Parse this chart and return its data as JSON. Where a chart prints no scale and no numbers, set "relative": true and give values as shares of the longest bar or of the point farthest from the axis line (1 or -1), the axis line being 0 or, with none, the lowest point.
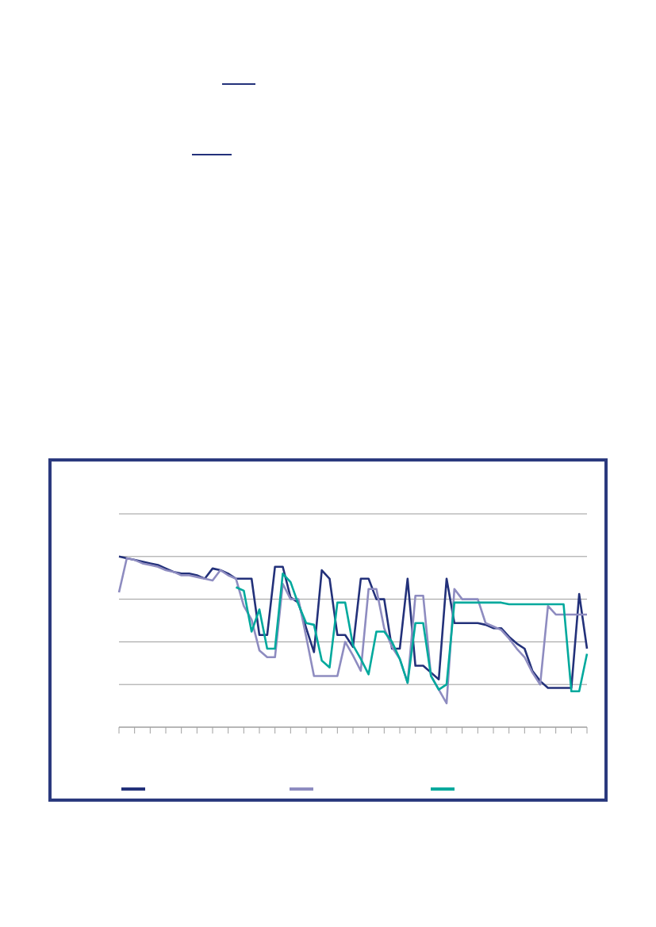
{
  "chart_data": {
    "type": "line",
    "relative": true,
    "categories": [
      null,
      null,
      null,
      null,
      null,
      null,
      null,
      null,
      null,
      null,
      null,
      null,
      null,
      null,
      null,
      null,
      null,
      null,
      null,
      null,
      null,
      null,
      null,
      null,
      null,
      null,
      null,
      null,
      null,
      null,
      null,
      null,
      null,
      null,
      null,
      null,
      null,
      null,
      null,
      null,
      null,
      null,
      null,
      null,
      null,
      null,
      null,
      null,
      null,
      null,
      null,
      null,
      null,
      null,
      null,
      null,
      null,
      null,
      null,
      null,
      null
    ],
    "series": [
      {
        "color": "#23317a",
        "values": [
          1.0,
          0.99,
          0.98,
          0.97,
          0.96,
          0.95,
          0.93,
          0.91,
          0.9,
          0.9,
          0.89,
          0.87,
          0.93,
          0.92,
          0.9,
          0.87,
          0.87,
          0.87,
          0.54,
          0.54,
          0.94,
          0.94,
          0.76,
          0.73,
          0.58,
          0.44,
          0.92,
          0.87,
          0.54,
          0.54,
          0.47,
          0.87,
          0.87,
          0.75,
          0.75,
          0.46,
          0.46,
          0.87,
          0.36,
          0.36,
          0.32,
          0.28,
          0.87,
          0.61,
          0.61,
          0.61,
          0.61,
          0.6,
          0.58,
          0.58,
          0.53,
          0.49,
          0.46,
          0.33,
          0.27,
          0.23,
          0.23,
          0.23,
          0.23,
          0.78,
          0.46
        ]
      },
      {
        "color": "#8e8cc0",
        "values": [
          0.79,
          0.99,
          0.98,
          0.96,
          0.95,
          0.94,
          0.92,
          0.91,
          0.89,
          0.89,
          0.88,
          0.87,
          0.86,
          0.92,
          0.89,
          0.87,
          0.71,
          0.63,
          0.45,
          0.41,
          0.41,
          0.84,
          0.75,
          0.75,
          0.53,
          0.3,
          0.3,
          0.3,
          0.3,
          0.5,
          0.42,
          0.33,
          0.81,
          0.81,
          0.58,
          0.47,
          0.4,
          0.26,
          0.77,
          0.77,
          0.3,
          0.22,
          0.14,
          0.81,
          0.75,
          0.75,
          0.75,
          0.61,
          0.59,
          0.57,
          0.52,
          0.46,
          0.41,
          0.32,
          0.25,
          0.71,
          0.66,
          0.66,
          0.66,
          0.66,
          0.66
        ]
      },
      {
        "color": "#00a99d",
        "values": [
          null,
          null,
          null,
          null,
          null,
          null,
          null,
          null,
          null,
          null,
          null,
          null,
          null,
          null,
          null,
          0.82,
          0.8,
          0.56,
          0.69,
          0.46,
          0.46,
          0.9,
          0.85,
          0.72,
          0.61,
          0.6,
          0.39,
          0.35,
          0.73,
          0.73,
          0.48,
          0.4,
          0.31,
          0.56,
          0.56,
          0.5,
          0.4,
          0.26,
          0.61,
          0.61,
          0.3,
          0.22,
          0.25,
          0.73,
          0.73,
          0.73,
          0.73,
          0.73,
          0.73,
          0.73,
          0.72,
          0.72,
          0.72,
          0.72,
          0.72,
          0.72,
          0.72,
          0.72,
          0.21,
          0.21,
          0.43
        ]
      }
    ],
    "grid": "y",
    "marker": "none",
    "line_style": "solid"
  }
}
